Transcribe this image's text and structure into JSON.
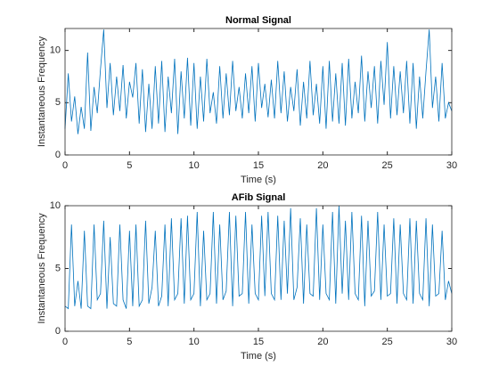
{
  "chart_data": [
    {
      "type": "line",
      "title": "Normal Signal",
      "xlabel": "Time (s)",
      "ylabel": "Instantaneous Frequency",
      "x": [
        0,
        0.25,
        0.5,
        0.75,
        1,
        1.25,
        1.5,
        1.75,
        2,
        2.25,
        2.5,
        2.75,
        3,
        3.25,
        3.5,
        3.75,
        4,
        4.25,
        4.5,
        4.75,
        5,
        5.25,
        5.5,
        5.75,
        6,
        6.25,
        6.5,
        6.75,
        7,
        7.25,
        7.5,
        7.75,
        8,
        8.25,
        8.5,
        8.75,
        9,
        9.25,
        9.5,
        9.75,
        10,
        10.25,
        10.5,
        10.75,
        11,
        11.25,
        11.5,
        11.75,
        12,
        12.25,
        12.5,
        12.75,
        13,
        13.25,
        13.5,
        13.75,
        14,
        14.25,
        14.5,
        14.75,
        15,
        15.25,
        15.5,
        15.75,
        16,
        16.25,
        16.5,
        16.75,
        17,
        17.25,
        17.5,
        17.75,
        18,
        18.25,
        18.5,
        18.75,
        19,
        19.25,
        19.5,
        19.75,
        20,
        20.25,
        20.5,
        20.75,
        21,
        21.25,
        21.5,
        21.75,
        22,
        22.25,
        22.5,
        22.75,
        23,
        23.25,
        23.5,
        23.75,
        24,
        24.25,
        24.5,
        24.75,
        25,
        25.25,
        25.5,
        25.75,
        26,
        26.25,
        26.5,
        26.75,
        27,
        27.25,
        27.5,
        27.75,
        28,
        28.25,
        28.5,
        28.75,
        29,
        29.25,
        29.5,
        29.75,
        30
      ],
      "series": [
        {
          "color": "#0072bd",
          "values": [
            2.5,
            7.8,
            3.2,
            5.6,
            2.0,
            4.6,
            2.5,
            9.8,
            2.3,
            6.5,
            4.0,
            8.2,
            12.0,
            4.5,
            8.8,
            3.8,
            7.5,
            4.2,
            8.6,
            3.5,
            7.0,
            5.5,
            8.8,
            3.0,
            8.2,
            2.2,
            6.8,
            2.5,
            8.5,
            3.0,
            9.0,
            2.2,
            7.5,
            4.0,
            9.2,
            2.0,
            8.0,
            3.5,
            9.3,
            2.8,
            8.8,
            2.5,
            7.5,
            3.2,
            9.2,
            4.0,
            6.0,
            3.0,
            8.5,
            3.5,
            7.8,
            3.8,
            9.0,
            4.2,
            6.5,
            3.5,
            7.8,
            4.0,
            8.5,
            3.2,
            8.8,
            4.5,
            6.8,
            3.6,
            7.2,
            3.5,
            9.0,
            4.0,
            8.0,
            3.2,
            6.5,
            4.2,
            8.2,
            2.8,
            7.0,
            3.5,
            9.0,
            3.8,
            6.8,
            3.0,
            8.5,
            2.5,
            9.0,
            3.2,
            7.8,
            3.0,
            8.8,
            2.8,
            9.2,
            3.5,
            7.0,
            4.0,
            9.5,
            3.2,
            8.0,
            4.5,
            8.5,
            3.0,
            9.0,
            4.8,
            10.8,
            3.5,
            8.5,
            3.8,
            8.0,
            4.0,
            9.0,
            3.0,
            8.8,
            2.5,
            7.5,
            3.5,
            8.0,
            12.0,
            4.5,
            7.5,
            3.2,
            8.8,
            3.5,
            5.0,
            4.2
          ]
        }
      ],
      "xlim": [
        0,
        30
      ],
      "ylim": [
        0,
        12.1
      ],
      "xticks": [
        0,
        5,
        10,
        15,
        20,
        25,
        30
      ],
      "yticks": [
        0,
        5,
        10
      ]
    },
    {
      "type": "line",
      "title": "AFib Signal",
      "xlabel": "Time (s)",
      "ylabel": "Instantaneous Frequency",
      "x": [
        0,
        0.25,
        0.5,
        0.75,
        1,
        1.25,
        1.5,
        1.75,
        2,
        2.25,
        2.5,
        2.75,
        3,
        3.25,
        3.5,
        3.75,
        4,
        4.25,
        4.5,
        4.75,
        5,
        5.25,
        5.5,
        5.75,
        6,
        6.25,
        6.5,
        6.75,
        7,
        7.25,
        7.5,
        7.75,
        8,
        8.25,
        8.5,
        8.75,
        9,
        9.25,
        9.5,
        9.75,
        10,
        10.25,
        10.5,
        10.75,
        11,
        11.25,
        11.5,
        11.75,
        12,
        12.25,
        12.5,
        12.75,
        13,
        13.25,
        13.5,
        13.75,
        14,
        14.25,
        14.5,
        14.75,
        15,
        15.25,
        15.5,
        15.75,
        16,
        16.25,
        16.5,
        16.75,
        17,
        17.25,
        17.5,
        17.75,
        18,
        18.25,
        18.5,
        18.75,
        19,
        19.25,
        19.5,
        19.75,
        20,
        20.25,
        20.5,
        20.75,
        21,
        21.25,
        21.5,
        21.75,
        22,
        22.25,
        22.5,
        22.75,
        23,
        23.25,
        23.5,
        23.75,
        24,
        24.25,
        24.5,
        24.75,
        25,
        25.25,
        25.5,
        25.75,
        26,
        26.25,
        26.5,
        26.75,
        27,
        27.25,
        27.5,
        27.75,
        28,
        28.25,
        28.5,
        28.75,
        29,
        29.25,
        29.5,
        29.75,
        30
      ],
      "series": [
        {
          "color": "#0072bd",
          "values": [
            2.0,
            1.8,
            8.5,
            2.0,
            4.0,
            1.8,
            8.0,
            2.0,
            1.8,
            8.5,
            2.5,
            3.0,
            8.8,
            1.8,
            7.5,
            2.2,
            2.0,
            8.5,
            2.5,
            1.8,
            8.0,
            2.0,
            8.5,
            2.0,
            2.5,
            8.8,
            2.2,
            3.5,
            8.0,
            2.0,
            2.8,
            8.5,
            2.0,
            9.0,
            2.5,
            3.0,
            9.0,
            2.2,
            9.2,
            2.5,
            3.0,
            9.5,
            2.0,
            8.0,
            2.5,
            3.0,
            9.5,
            2.2,
            8.5,
            2.5,
            3.2,
            9.5,
            2.0,
            9.2,
            2.8,
            3.0,
            9.5,
            2.2,
            8.5,
            3.0,
            2.5,
            9.2,
            2.8,
            9.5,
            3.0,
            2.5,
            9.2,
            2.5,
            8.8,
            3.0,
            9.8,
            2.5,
            3.5,
            9.0,
            2.2,
            8.5,
            3.0,
            2.8,
            9.8,
            2.5,
            8.5,
            3.0,
            2.5,
            9.5,
            2.2,
            10.0,
            3.0,
            8.8,
            2.5,
            9.5,
            3.0,
            2.5,
            9.2,
            2.0,
            8.8,
            2.8,
            3.2,
            9.5,
            2.5,
            8.5,
            2.8,
            3.0,
            9.0,
            2.2,
            8.5,
            3.0,
            2.5,
            9.0,
            2.2,
            8.8,
            3.0,
            2.5,
            9.0,
            2.0,
            8.5,
            2.8,
            3.0,
            8.0,
            2.5,
            4.0,
            3.0
          ]
        }
      ],
      "xlim": [
        0,
        30
      ],
      "ylim": [
        0,
        10
      ],
      "xticks": [
        0,
        5,
        10,
        15,
        20,
        25,
        30
      ],
      "yticks": [
        0,
        5,
        10
      ]
    }
  ]
}
